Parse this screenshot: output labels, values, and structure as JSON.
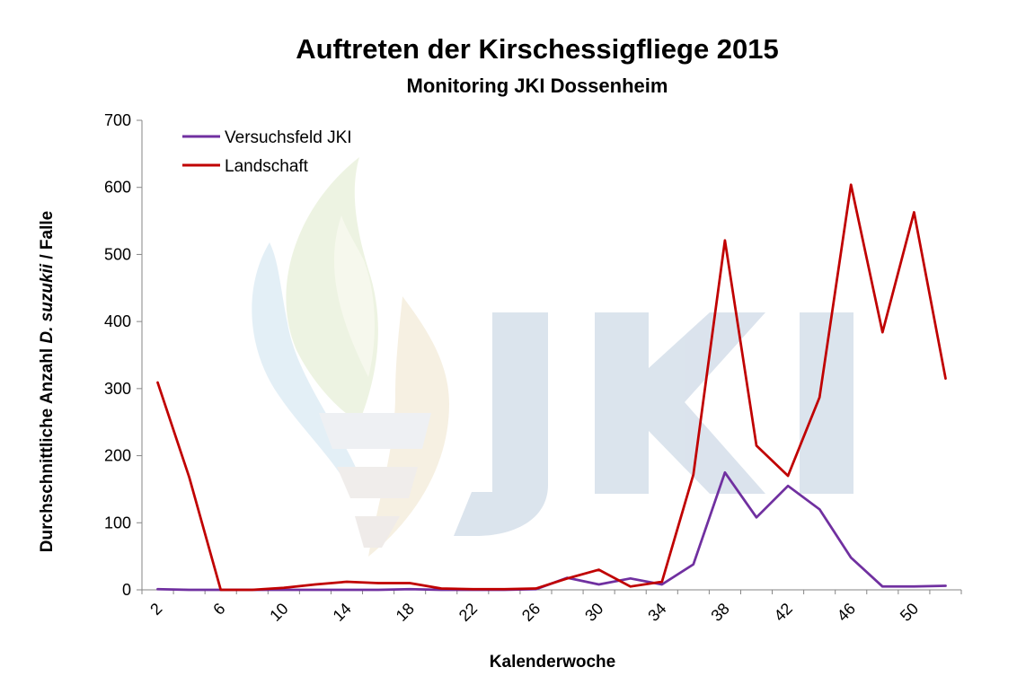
{
  "chart_data": {
    "type": "line",
    "title": "Auftreten der Kirschessigfliege 2015",
    "subtitle": "Monitoring JKI Dossenheim",
    "xlabel": "Kalenderwoche",
    "ylabel_parts": [
      "Durchschnittliche Anzahl ",
      "D. suzukii",
      " / Falle"
    ],
    "xlim": [
      1,
      53
    ],
    "ylim": [
      0,
      700
    ],
    "yticks": [
      0,
      100,
      200,
      300,
      400,
      500,
      600,
      700
    ],
    "xticks": [
      2,
      6,
      10,
      14,
      18,
      22,
      26,
      30,
      34,
      38,
      42,
      46,
      50
    ],
    "x": [
      2,
      4,
      6,
      8,
      10,
      12,
      14,
      16,
      18,
      20,
      22,
      24,
      26,
      28,
      30,
      32,
      34,
      36,
      38,
      40,
      42,
      44,
      46,
      48,
      50,
      52
    ],
    "series": [
      {
        "name": "Versuchsfeld JKI",
        "color": "#7030a0",
        "values": [
          1,
          0,
          0,
          0,
          0,
          0,
          0,
          0,
          1,
          0,
          0,
          0,
          1,
          18,
          8,
          17,
          8,
          38,
          175,
          108,
          155,
          120,
          48,
          5,
          5,
          6
        ]
      },
      {
        "name": "Landschaft",
        "color": "#c00000",
        "values": [
          309,
          168,
          0,
          0,
          3,
          8,
          12,
          10,
          10,
          2,
          1,
          1,
          2,
          17,
          30,
          5,
          12,
          172,
          521,
          215,
          170,
          287,
          604,
          384,
          563,
          315
        ]
      }
    ],
    "legend_position": "top-left",
    "watermark": "JKI"
  }
}
